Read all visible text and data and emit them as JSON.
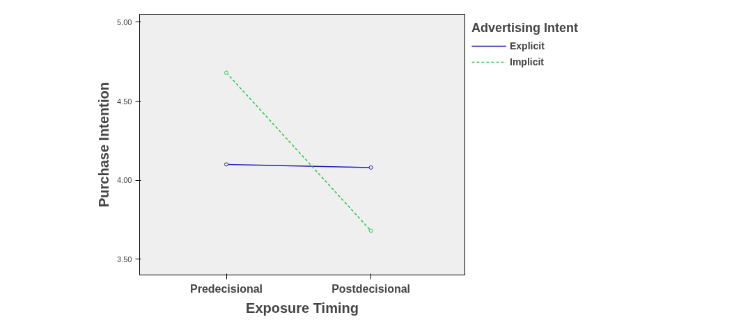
{
  "chart_data": {
    "type": "line",
    "xlabel": "Exposure Timing",
    "ylabel": "Purchase Intention",
    "legend_title": "Advertising Intent",
    "categories": [
      "Predecisional",
      "Postdecisional"
    ],
    "series": [
      {
        "name": "Explicit",
        "color": "#1f1fb4",
        "values": [
          4.1,
          4.08
        ],
        "line_style": "solid"
      },
      {
        "name": "Implicit",
        "color": "#22c744",
        "values": [
          4.68,
          3.68
        ],
        "line_style": "dashed"
      }
    ],
    "ylim": [
      3.4,
      5.05
    ],
    "yticks": [
      {
        "value": 3.5,
        "label": "3.50"
      },
      {
        "value": 4.0,
        "label": "4.00"
      },
      {
        "value": 4.5,
        "label": "4.50"
      },
      {
        "value": 5.0,
        "label": "5.00"
      }
    ],
    "grid": false,
    "legend": "right",
    "marker": "circle"
  }
}
